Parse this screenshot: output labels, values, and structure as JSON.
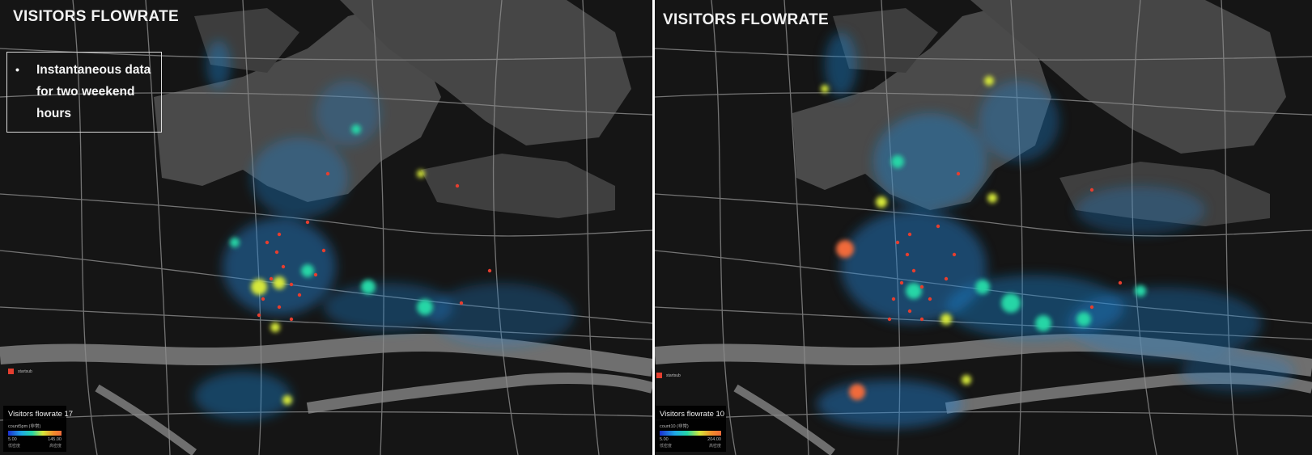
{
  "panels": [
    {
      "title": "VISITORS FLOWRATE",
      "annotation": {
        "bullet": "•",
        "text": "Instantaneous data for two weekend hours"
      },
      "legend": {
        "marker_label": "startsub",
        "title": "Visitors flowrate 17",
        "subtitle": "count5pm (非常)",
        "min": "5.00",
        "max": "145.00",
        "min_desc": "低密度",
        "max_desc": "高密度"
      }
    },
    {
      "title": "VISITORS FLOWRATE",
      "legend": {
        "marker_label": "startsub",
        "title": "Visitors flowrate 10",
        "subtitle": "count10 (非常)",
        "min": "5.00",
        "max": "204.00",
        "min_desc": "低密度",
        "max_desc": "高密度"
      }
    }
  ],
  "colors": {
    "map_background": "#151515",
    "landmass": "#4a4a4a",
    "water": "#6f6f6f",
    "roads": "#8c8c8c",
    "heat_low": "#1fa9e6",
    "heat_mid": "#25d6a6",
    "heat_high": "#d6e83a",
    "heat_peak": "#f06a3a",
    "station_dot": "#e53e2f"
  }
}
